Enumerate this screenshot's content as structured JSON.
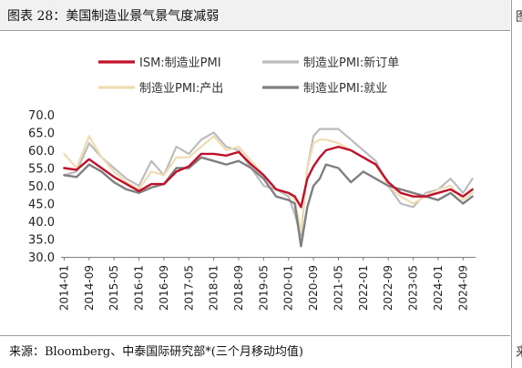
{
  "figure": {
    "title": "图表 28：美国制造业景气景气度减弱",
    "source": "来源：Bloomberg、中泰国际研究部*(三个月移动均值)",
    "right_glyph_top": "图",
    "right_glyph_bottom": "来"
  },
  "chart_data": {
    "type": "line",
    "ylim": [
      30.0,
      70.0
    ],
    "yticks": [
      "30.0",
      "35.0",
      "40.0",
      "45.0",
      "50.0",
      "55.0",
      "60.0",
      "65.0",
      "70.0"
    ],
    "xticks": [
      "2014-01",
      "2014-09",
      "2015-05",
      "2016-01",
      "2016-09",
      "2017-05",
      "2018-01",
      "2018-09",
      "2019-05",
      "2020-01",
      "2020-09",
      "2021-05",
      "2022-01",
      "2022-09",
      "2023-05",
      "2024-01",
      "2024-09"
    ],
    "x": [
      "2014-01",
      "2014-05",
      "2014-09",
      "2015-01",
      "2015-05",
      "2015-09",
      "2016-01",
      "2016-05",
      "2016-09",
      "2017-01",
      "2017-05",
      "2017-09",
      "2018-01",
      "2018-05",
      "2018-09",
      "2019-01",
      "2019-05",
      "2019-09",
      "2020-01",
      "2020-03",
      "2020-05",
      "2020-07",
      "2020-09",
      "2020-11",
      "2021-01",
      "2021-05",
      "2021-09",
      "2022-01",
      "2022-05",
      "2022-09",
      "2023-01",
      "2023-05",
      "2023-09",
      "2024-01",
      "2024-05",
      "2024-09",
      "2024-12"
    ],
    "grid": false,
    "legend_position": "top",
    "series": [
      {
        "name": "ISM:制造业PMI",
        "color": "#c0102a",
        "width": 2.4,
        "values": [
          55,
          54.5,
          57.5,
          55,
          52.5,
          50.5,
          48.5,
          50.5,
          50.5,
          54,
          55.5,
          59,
          59,
          58.5,
          59.5,
          56,
          53,
          49,
          48,
          47,
          44,
          52,
          55.5,
          58,
          60,
          61,
          60,
          58,
          56,
          51,
          48,
          47,
          47,
          48,
          49,
          47,
          49
        ]
      },
      {
        "name": "制造业PMI:新订单",
        "color": "#bcbcbc",
        "width": 2.2,
        "values": [
          53,
          54,
          62,
          58,
          55,
          52,
          50,
          57,
          53,
          61,
          59,
          63,
          65,
          61,
          60,
          55,
          50,
          49,
          47,
          42,
          36,
          55,
          64,
          66,
          66,
          66,
          63,
          60,
          57,
          50,
          45,
          44,
          48,
          49,
          52,
          48,
          52
        ]
      },
      {
        "name": "制造业PMI:产出",
        "color": "#efdcb2",
        "width": 2.2,
        "values": [
          59,
          55,
          64,
          58,
          54,
          51,
          49,
          54,
          53,
          58,
          58,
          61,
          64,
          60,
          61,
          57,
          53,
          49,
          48,
          46,
          37,
          55,
          62,
          63,
          63,
          62,
          60,
          58,
          56,
          50,
          47,
          45,
          47,
          49,
          50,
          46,
          48
        ]
      },
      {
        "name": "制造业PMI:就业",
        "color": "#7f7f7f",
        "width": 2.4,
        "values": [
          53,
          52.5,
          56,
          54,
          51,
          49,
          48,
          49.5,
          50.5,
          55,
          55,
          58,
          57,
          56,
          57,
          55,
          52,
          47,
          46,
          45,
          33,
          44,
          50,
          52,
          56,
          55,
          51,
          54,
          52,
          50,
          49,
          48,
          47,
          46,
          48,
          45,
          47
        ]
      }
    ]
  }
}
